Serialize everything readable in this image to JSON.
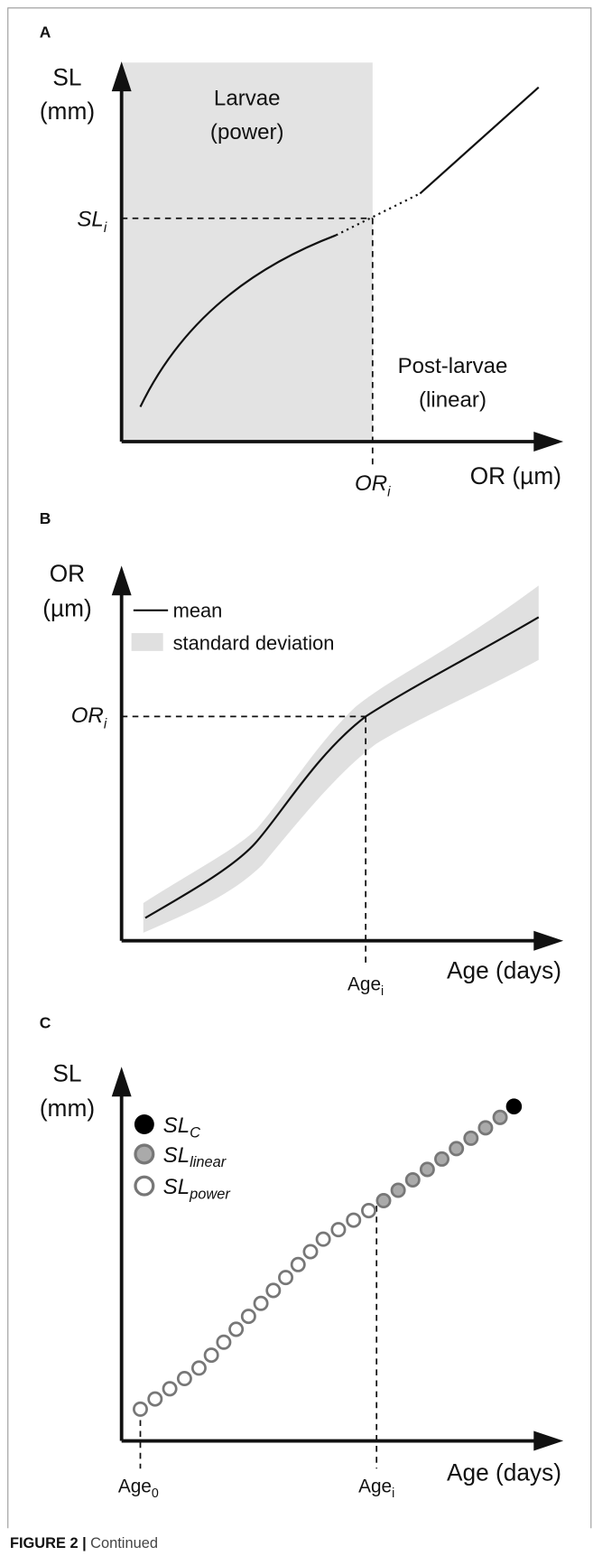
{
  "panels": [
    {
      "label": "A",
      "y_axis": [
        "SL",
        "(mm)"
      ],
      "x_axis": "OR (µm)",
      "region_label": [
        "Larvae",
        "(power)"
      ],
      "other_label": [
        "Post-larvae",
        "(linear)"
      ],
      "y_marker": {
        "base": "SL",
        "sub": "i"
      },
      "x_marker": {
        "base": "OR",
        "sub": "i"
      }
    },
    {
      "label": "B",
      "y_axis": [
        "OR",
        "(µm)"
      ],
      "x_axis": "Age (days)",
      "legend": [
        "mean",
        "standard deviation"
      ],
      "y_marker": {
        "base": "OR",
        "sub": "i"
      },
      "x_marker": {
        "base": "Age",
        "sub": "i"
      }
    },
    {
      "label": "C",
      "y_axis": [
        "SL",
        "(mm)"
      ],
      "x_axis": "Age (days)",
      "legend": [
        {
          "base": "SL",
          "sub": "C"
        },
        {
          "base": "SL",
          "sub": "linear"
        },
        {
          "base": "SL",
          "sub": "power"
        }
      ],
      "x_markers": [
        {
          "base": "Age",
          "sub": "0"
        },
        {
          "base": "Age",
          "sub": "i"
        }
      ]
    }
  ],
  "caption": {
    "label": "FIGURE 2 |",
    "text": "Continued"
  }
}
